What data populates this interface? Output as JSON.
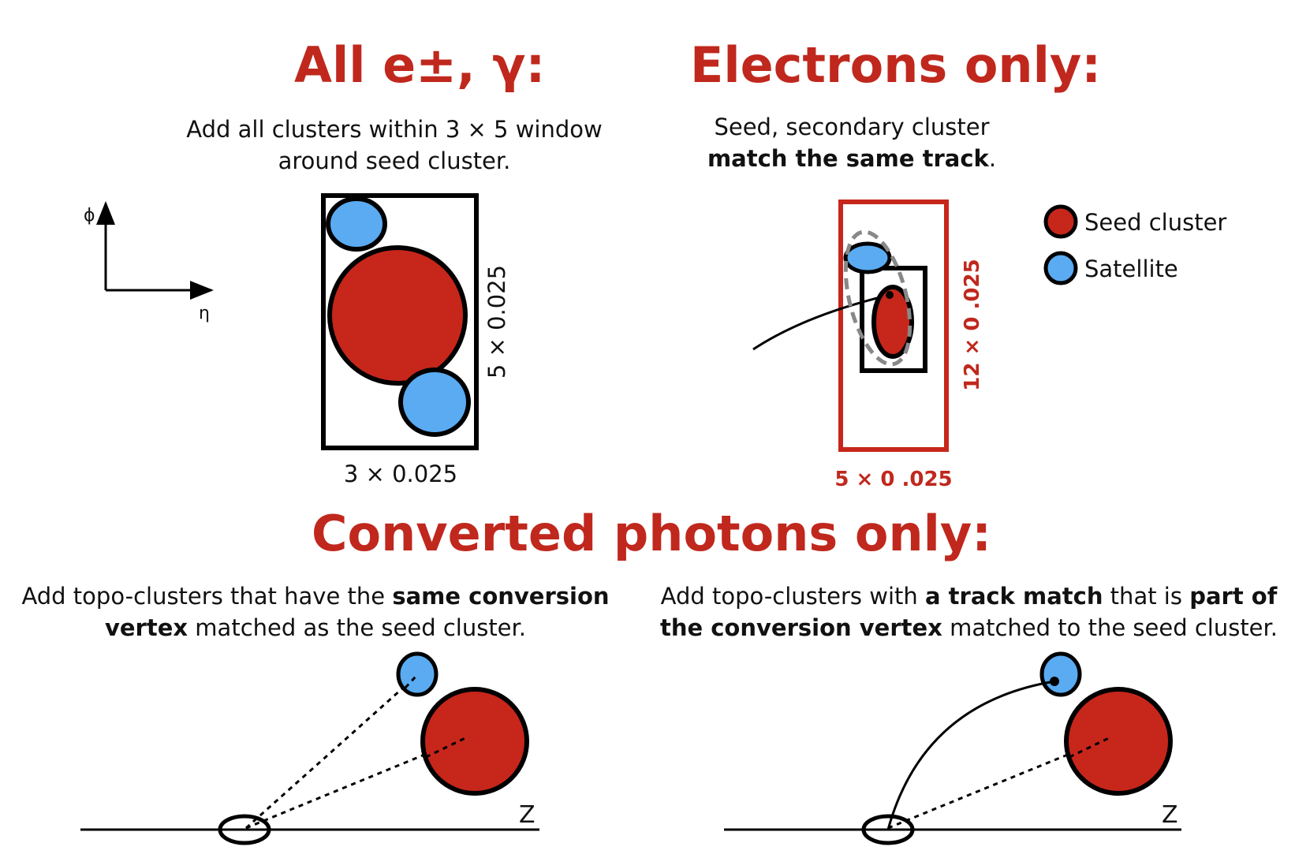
{
  "titles": {
    "all": "All e±, γ:",
    "electrons": "Electrons only:",
    "converted": "Converted photons only:"
  },
  "all_panel": {
    "desc_line1": "Add all clusters within 3 × 5 window",
    "desc_line2": "around seed cluster.",
    "axis_phi": "ϕ",
    "axis_eta": "η",
    "width_label": "3 × 0.025",
    "height_label": "5 × 0.025"
  },
  "electrons_panel": {
    "desc_line1": "Seed, secondary cluster",
    "desc_line2_bold": "match the same track",
    "desc_line2_end": ".",
    "width_label": "5 × 0 .025",
    "height_label": "12 × 0 .025"
  },
  "legend": {
    "seed": "Seed cluster",
    "satellite": "Satellite"
  },
  "converted_left": {
    "l1_a": "Add topo-clusters that have the ",
    "l1_b": "same conversion",
    "l2_a": "vertex",
    "l2_b": " matched as the seed cluster.",
    "axis_z": "Z"
  },
  "converted_right": {
    "l1_a": "Add topo-clusters with ",
    "l1_b": "a track match",
    "l1_c": " that is ",
    "l1_d": "part of",
    "l2_a": "the conversion vertex",
    "l2_b": " matched to the seed cluster.",
    "axis_z": "Z"
  },
  "colors": {
    "title_red": "#c0281d",
    "seed_red": "#c7261b",
    "satellite_blue": "#5aabf2",
    "outline": "#000000",
    "dashed_gray": "#888888"
  }
}
